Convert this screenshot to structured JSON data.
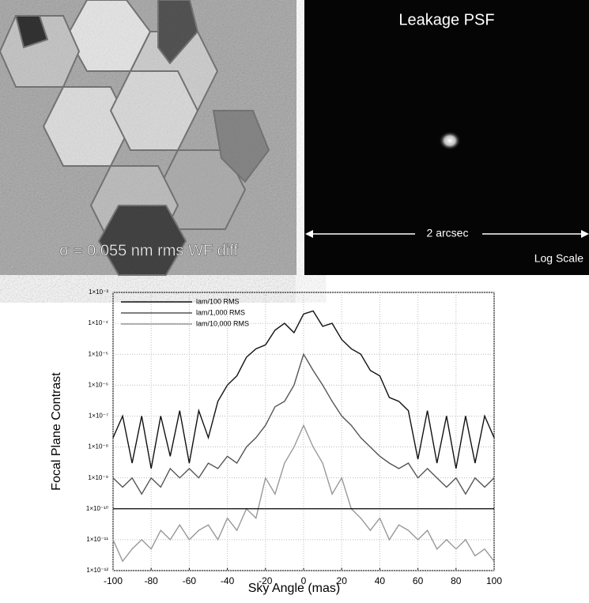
{
  "panels": {
    "wavefront": {
      "label": "σ = 0.055 nm rms WF diff"
    },
    "psf": {
      "title": "Leakage PSF",
      "scale_bar": "2 arcsec",
      "scale_note": "Log Scale"
    }
  },
  "chart_data": {
    "type": "line",
    "x_label": "Sky Angle (mas)",
    "y_label": "Focal Plane Contrast",
    "log_y": true,
    "grid": true,
    "legend": "upper left",
    "xlim": [
      -100,
      100
    ],
    "xticks": [
      -100,
      -80,
      -60,
      -40,
      -20,
      0,
      20,
      40,
      60,
      80,
      100
    ],
    "ylim": [
      1e-12,
      0.001
    ],
    "yticks": [
      {
        "value": 1e-12,
        "label": "1×10⁻¹²"
      },
      {
        "value": 1e-11,
        "label": "1×10⁻¹¹"
      },
      {
        "value": 1e-10,
        "label": "1×10⁻¹⁰"
      },
      {
        "value": 1e-09,
        "label": "1×10⁻⁹"
      },
      {
        "value": 1e-08,
        "label": "1×10⁻⁸"
      },
      {
        "value": 1e-07,
        "label": "1×10⁻⁷"
      },
      {
        "value": 1e-06,
        "label": "1×10⁻⁶"
      },
      {
        "value": 1e-05,
        "label": "1×10⁻⁵"
      },
      {
        "value": 0.0001,
        "label": "1×10⁻⁴"
      },
      {
        "value": 0.001,
        "label": "1×10⁻³"
      }
    ],
    "hline": 1e-10,
    "x": [
      -100,
      -95,
      -90,
      -85,
      -80,
      -75,
      -70,
      -65,
      -60,
      -55,
      -50,
      -45,
      -40,
      -35,
      -30,
      -25,
      -20,
      -15,
      -10,
      -5,
      0,
      5,
      10,
      15,
      20,
      25,
      30,
      35,
      40,
      45,
      50,
      55,
      60,
      65,
      70,
      75,
      80,
      85,
      90,
      95,
      100
    ],
    "series": [
      {
        "name": "lam/100 RMS",
        "color": "#111111",
        "values": [
          2e-08,
          1e-07,
          3e-09,
          1e-07,
          2e-09,
          1e-07,
          5e-09,
          1.5e-07,
          3e-09,
          1.5e-07,
          2e-08,
          3e-07,
          1e-06,
          2e-06,
          8e-06,
          1.5e-05,
          2e-05,
          6e-05,
          0.0001,
          5e-05,
          0.0002,
          0.00025,
          8e-05,
          0.0001,
          3e-05,
          1.5e-05,
          1e-05,
          3e-06,
          2e-06,
          4e-07,
          3e-07,
          1.5e-07,
          4e-09,
          1.5e-07,
          3e-09,
          1e-07,
          2e-09,
          1e-07,
          3e-09,
          1e-07,
          2e-08
        ]
      },
      {
        "name": "lam/1,000 RMS",
        "color": "#555555",
        "values": [
          1e-09,
          5e-10,
          1e-09,
          3e-10,
          1e-09,
          5e-10,
          2e-09,
          1e-09,
          2e-09,
          1e-09,
          3e-09,
          2e-09,
          5e-09,
          3e-09,
          1e-08,
          2e-08,
          5e-08,
          2e-07,
          3e-07,
          1e-06,
          1e-05,
          3e-06,
          1e-06,
          3e-07,
          1e-07,
          5e-08,
          2e-08,
          1e-08,
          5e-09,
          3e-09,
          2e-09,
          3e-09,
          1e-09,
          2e-09,
          1e-09,
          5e-10,
          1e-09,
          3e-10,
          1e-09,
          5e-10,
          1e-09
        ]
      },
      {
        "name": "lam/10,000 RMS",
        "color": "#999999",
        "values": [
          1e-11,
          2e-12,
          5e-12,
          1e-11,
          5e-12,
          2e-11,
          1e-11,
          3e-11,
          1e-11,
          2e-11,
          3e-11,
          1e-11,
          5e-11,
          2e-11,
          1e-10,
          5e-11,
          1e-09,
          3e-10,
          3e-09,
          1e-08,
          5e-08,
          1e-08,
          3e-09,
          3e-10,
          1e-09,
          1e-10,
          5e-11,
          2e-11,
          5e-11,
          1e-11,
          3e-11,
          2e-11,
          1e-11,
          2e-11,
          5e-12,
          1e-11,
          5e-12,
          1e-11,
          3e-12,
          5e-12,
          2e-12
        ]
      }
    ]
  }
}
